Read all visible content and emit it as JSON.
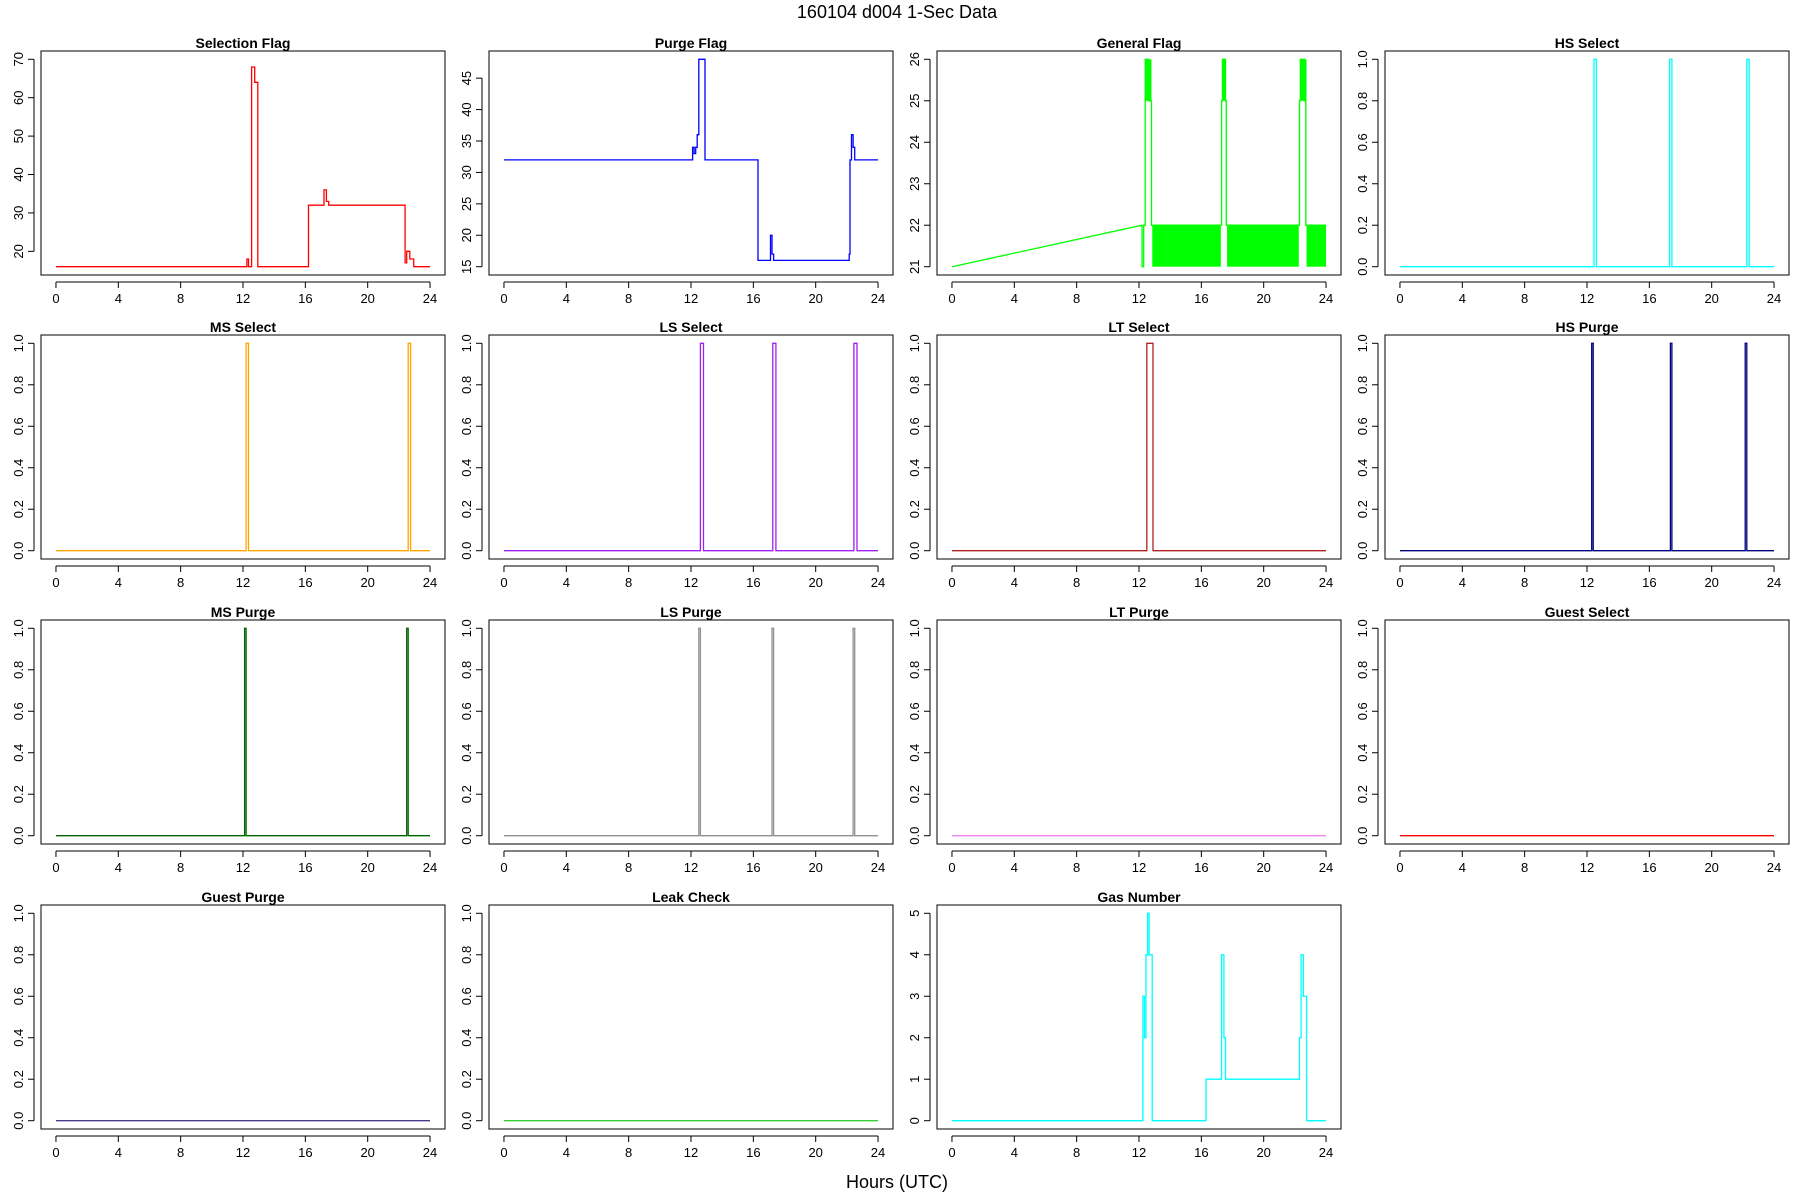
{
  "figure": {
    "title": "160104   d004   1-Sec Data",
    "xlabel": "Hours (UTC)"
  },
  "chart_data": [
    {
      "type": "line",
      "title": "Selection Flag",
      "color": "#ff0000",
      "xlim": [
        0,
        24
      ],
      "x_ticks": [
        0,
        4,
        8,
        12,
        16,
        20,
        24
      ],
      "ylim": [
        16,
        70
      ],
      "y_ticks": [
        20,
        30,
        40,
        50,
        60,
        70
      ],
      "x": [
        0,
        12.25,
        12.25,
        12.35,
        12.35,
        12.55,
        12.55,
        12.75,
        12.75,
        12.95,
        12.95,
        16.2,
        16.2,
        17.2,
        17.2,
        17.35,
        17.35,
        17.5,
        17.5,
        22.4,
        22.4,
        22.5,
        22.5,
        22.7,
        22.7,
        22.95,
        22.95,
        24
      ],
      "y": [
        16,
        16,
        18,
        18,
        16,
        16,
        68,
        68,
        64,
        64,
        16,
        16,
        32,
        32,
        36,
        36,
        33,
        33,
        32,
        32,
        17,
        17,
        20,
        20,
        18,
        18,
        16,
        16
      ]
    },
    {
      "type": "line",
      "title": "Purge Flag",
      "color": "#0000ff",
      "xlim": [
        0,
        24
      ],
      "x_ticks": [
        0,
        4,
        8,
        12,
        16,
        20,
        24
      ],
      "ylim": [
        15,
        48
      ],
      "y_ticks": [
        15,
        20,
        25,
        30,
        35,
        40,
        45
      ],
      "x": [
        0,
        12.1,
        12.1,
        12.2,
        12.2,
        12.3,
        12.3,
        12.4,
        12.4,
        12.5,
        12.5,
        12.65,
        12.65,
        12.9,
        12.9,
        16.3,
        16.3,
        17.1,
        17.1,
        17.2,
        17.2,
        17.3,
        17.3,
        22.15,
        22.15,
        22.2,
        22.2,
        22.3,
        22.3,
        22.4,
        22.4,
        22.5,
        22.5,
        24
      ],
      "y": [
        32,
        32,
        34,
        34,
        33,
        33,
        34,
        34,
        36,
        36,
        48,
        48,
        48,
        48,
        32,
        32,
        16,
        16,
        20,
        20,
        17,
        17,
        16,
        16,
        17,
        17,
        32,
        32,
        36,
        36,
        34,
        34,
        32,
        32
      ]
    },
    {
      "type": "line",
      "title": "General Flag",
      "color": "#00ff00",
      "xlim": [
        0,
        24
      ],
      "x_ticks": [
        0,
        4,
        8,
        12,
        16,
        20,
        24
      ],
      "ylim": [
        21,
        26
      ],
      "y_ticks": [
        21,
        22,
        23,
        24,
        25,
        26
      ],
      "x": [
        0,
        12.2,
        12.2,
        12.3,
        12.3,
        12.4,
        12.4,
        12.6,
        12.6,
        12.8,
        12.8,
        17.3,
        17.3,
        17.35,
        17.35,
        17.55,
        17.55,
        17.6,
        17.6,
        22.3,
        22.3,
        22.35,
        22.35,
        22.6,
        22.6,
        22.7,
        22.7,
        24
      ],
      "y": [
        21,
        22,
        21,
        21,
        22,
        22,
        26,
        26,
        25,
        25,
        22,
        22,
        25,
        25,
        26,
        26,
        25,
        25,
        22,
        22,
        25,
        25,
        26,
        26,
        25,
        25,
        22,
        22
      ],
      "bands": [
        {
          "x0": 12.85,
          "x1": 17.25,
          "y0": 21,
          "y1": 22
        },
        {
          "x0": 17.65,
          "x1": 22.25,
          "y0": 21,
          "y1": 22
        },
        {
          "x0": 22.75,
          "x1": 24,
          "y0": 21,
          "y1": 22
        },
        {
          "x0": 12.4,
          "x1": 12.8,
          "y0": 25,
          "y1": 26
        },
        {
          "x0": 17.35,
          "x1": 17.55,
          "y0": 25,
          "y1": 26
        },
        {
          "x0": 22.35,
          "x1": 22.75,
          "y0": 25,
          "y1": 26
        }
      ]
    },
    {
      "type": "line",
      "title": "HS Select",
      "color": "#00ffff",
      "xlim": [
        0,
        24
      ],
      "x_ticks": [
        0,
        4,
        8,
        12,
        16,
        20,
        24
      ],
      "ylim": [
        0,
        1
      ],
      "y_ticks": [
        0.0,
        0.2,
        0.4,
        0.6,
        0.8,
        1.0
      ],
      "x": [
        0,
        12.45,
        12.45,
        12.6,
        12.6,
        17.3,
        17.3,
        17.45,
        17.45,
        22.25,
        22.25,
        22.4,
        22.4,
        24
      ],
      "y": [
        0,
        0,
        1,
        1,
        0,
        0,
        1,
        1,
        0,
        0,
        1,
        1,
        0,
        0
      ]
    },
    {
      "type": "line",
      "title": "MS Select",
      "color": "#ffa500",
      "xlim": [
        0,
        24
      ],
      "x_ticks": [
        0,
        4,
        8,
        12,
        16,
        20,
        24
      ],
      "ylim": [
        0,
        1
      ],
      "y_ticks": [
        0.0,
        0.2,
        0.4,
        0.6,
        0.8,
        1.0
      ],
      "x": [
        0,
        12.2,
        12.2,
        12.35,
        12.35,
        22.6,
        22.6,
        22.75,
        22.75,
        24
      ],
      "y": [
        0,
        0,
        1,
        1,
        0,
        0,
        1,
        1,
        0,
        0
      ]
    },
    {
      "type": "line",
      "title": "LS Select",
      "color": "#a020f0",
      "xlim": [
        0,
        24
      ],
      "x_ticks": [
        0,
        4,
        8,
        12,
        16,
        20,
        24
      ],
      "ylim": [
        0,
        1
      ],
      "y_ticks": [
        0.0,
        0.2,
        0.4,
        0.6,
        0.8,
        1.0
      ],
      "x": [
        0,
        12.6,
        12.6,
        12.8,
        12.8,
        17.25,
        17.25,
        17.45,
        17.45,
        22.45,
        22.45,
        22.65,
        22.65,
        24
      ],
      "y": [
        0,
        0,
        1,
        1,
        0,
        0,
        1,
        1,
        0,
        0,
        1,
        1,
        0,
        0
      ]
    },
    {
      "type": "line",
      "title": "LT Select",
      "color": "#b22222",
      "xlim": [
        0,
        24
      ],
      "x_ticks": [
        0,
        4,
        8,
        12,
        16,
        20,
        24
      ],
      "ylim": [
        0,
        1
      ],
      "y_ticks": [
        0.0,
        0.2,
        0.4,
        0.6,
        0.8,
        1.0
      ],
      "x": [
        0,
        12.5,
        12.5,
        12.9,
        12.9,
        24
      ],
      "y": [
        0,
        0,
        1,
        1,
        0,
        0
      ]
    },
    {
      "type": "line",
      "title": "HS Purge",
      "color": "#000080",
      "xlim": [
        0,
        24
      ],
      "x_ticks": [
        0,
        4,
        8,
        12,
        16,
        20,
        24
      ],
      "ylim": [
        0,
        1
      ],
      "y_ticks": [
        0.0,
        0.2,
        0.4,
        0.6,
        0.8,
        1.0
      ],
      "x": [
        0,
        12.3,
        12.3,
        12.4,
        12.4,
        17.35,
        17.35,
        17.45,
        17.45,
        22.15,
        22.15,
        22.25,
        22.25,
        24
      ],
      "y": [
        0,
        0,
        1,
        1,
        0,
        0,
        1,
        1,
        0,
        0,
        1,
        1,
        0,
        0
      ]
    },
    {
      "type": "line",
      "title": "MS Purge",
      "color": "#006400",
      "xlim": [
        0,
        24
      ],
      "x_ticks": [
        0,
        4,
        8,
        12,
        16,
        20,
        24
      ],
      "ylim": [
        0,
        1
      ],
      "y_ticks": [
        0.0,
        0.2,
        0.4,
        0.6,
        0.8,
        1.0
      ],
      "x": [
        0,
        12.1,
        12.1,
        12.2,
        12.2,
        22.5,
        22.5,
        22.6,
        22.6,
        24
      ],
      "y": [
        0,
        0,
        1,
        1,
        0,
        0,
        1,
        1,
        0,
        0
      ]
    },
    {
      "type": "line",
      "title": "LS Purge",
      "color": "#909090",
      "xlim": [
        0,
        24
      ],
      "x_ticks": [
        0,
        4,
        8,
        12,
        16,
        20,
        24
      ],
      "ylim": [
        0,
        1
      ],
      "y_ticks": [
        0.0,
        0.2,
        0.4,
        0.6,
        0.8,
        1.0
      ],
      "x": [
        0,
        12.5,
        12.5,
        12.6,
        12.6,
        17.2,
        17.2,
        17.3,
        17.3,
        22.4,
        22.4,
        22.5,
        22.5,
        24
      ],
      "y": [
        0,
        0,
        1,
        1,
        0,
        0,
        1,
        1,
        0,
        0,
        1,
        1,
        0,
        0
      ]
    },
    {
      "type": "line",
      "title": "LT Purge",
      "color": "#ee82ee",
      "xlim": [
        0,
        24
      ],
      "x_ticks": [
        0,
        4,
        8,
        12,
        16,
        20,
        24
      ],
      "ylim": [
        0,
        1
      ],
      "y_ticks": [
        0.0,
        0.2,
        0.4,
        0.6,
        0.8,
        1.0
      ],
      "x": [
        0,
        24
      ],
      "y": [
        0,
        0
      ]
    },
    {
      "type": "line",
      "title": "Guest Select",
      "color": "#ff0000",
      "xlim": [
        0,
        24
      ],
      "x_ticks": [
        0,
        4,
        8,
        12,
        16,
        20,
        24
      ],
      "ylim": [
        0,
        1
      ],
      "y_ticks": [
        0.0,
        0.2,
        0.4,
        0.6,
        0.8,
        1.0
      ],
      "x": [
        0,
        24
      ],
      "y": [
        0,
        0
      ]
    },
    {
      "type": "line",
      "title": "Guest Purge",
      "color": "#483d8b",
      "xlim": [
        0,
        24
      ],
      "x_ticks": [
        0,
        4,
        8,
        12,
        16,
        20,
        24
      ],
      "ylim": [
        0,
        1
      ],
      "y_ticks": [
        0.0,
        0.2,
        0.4,
        0.6,
        0.8,
        1.0
      ],
      "x": [
        0,
        24
      ],
      "y": [
        0,
        0
      ]
    },
    {
      "type": "line",
      "title": "Leak Check",
      "color": "#32cd32",
      "xlim": [
        0,
        24
      ],
      "x_ticks": [
        0,
        4,
        8,
        12,
        16,
        20,
        24
      ],
      "ylim": [
        0,
        1
      ],
      "y_ticks": [
        0.0,
        0.2,
        0.4,
        0.6,
        0.8,
        1.0
      ],
      "x": [
        0,
        24
      ],
      "y": [
        0,
        0
      ]
    },
    {
      "type": "line",
      "title": "Gas Number",
      "color": "#00ffff",
      "xlim": [
        0,
        24
      ],
      "x_ticks": [
        0,
        4,
        8,
        12,
        16,
        20,
        24
      ],
      "ylim": [
        0,
        5
      ],
      "y_ticks": [
        0,
        1,
        2,
        3,
        4,
        5
      ],
      "x": [
        0,
        12.25,
        12.25,
        12.35,
        12.35,
        12.45,
        12.45,
        12.55,
        12.55,
        12.65,
        12.65,
        12.85,
        12.85,
        16.3,
        16.3,
        17.3,
        17.3,
        17.45,
        17.45,
        17.55,
        17.55,
        22.3,
        22.3,
        22.4,
        22.4,
        22.55,
        22.55,
        22.75,
        22.75,
        24
      ],
      "y": [
        0,
        0,
        3,
        3,
        2,
        2,
        4,
        4,
        5,
        5,
        4,
        4,
        0,
        0,
        1,
        1,
        4,
        4,
        2,
        2,
        1,
        1,
        2,
        2,
        4,
        4,
        3,
        3,
        0,
        0
      ]
    }
  ]
}
